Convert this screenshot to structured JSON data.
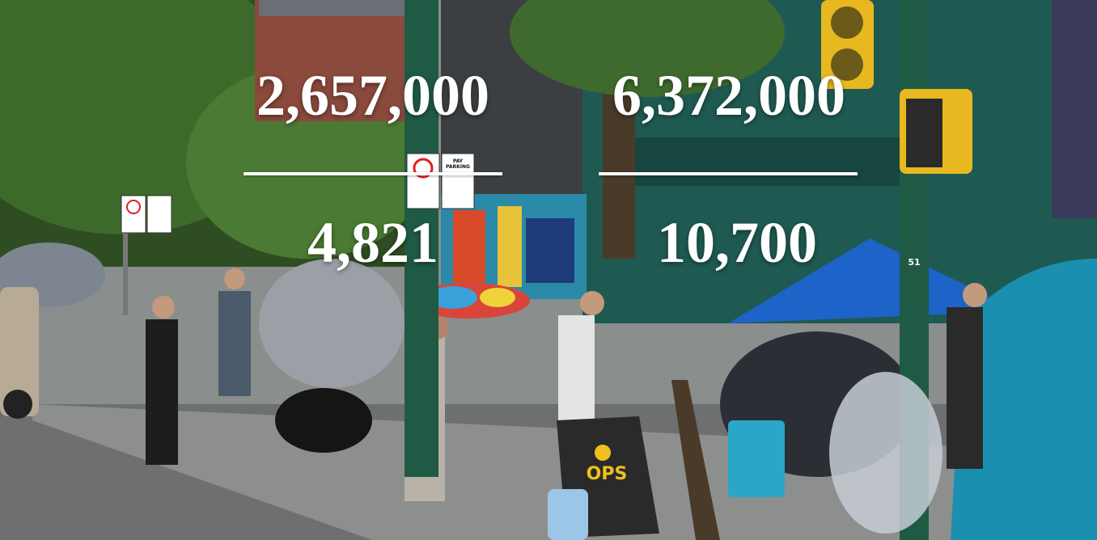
{
  "fractions": [
    {
      "numerator": "2,657,000",
      "denominator": "4,821"
    },
    {
      "numerator": "6,372,000",
      "denominator": "10,700"
    }
  ],
  "signs": {
    "pay_parking": "PAY PARKING",
    "ops": "OPS",
    "pole_number": "51"
  },
  "colors": {
    "overlay_text": "#ffffff",
    "building_green": "#1f5a52",
    "umbrella_blue": "#1e63c8",
    "tent_teal": "#1b8fb0"
  }
}
